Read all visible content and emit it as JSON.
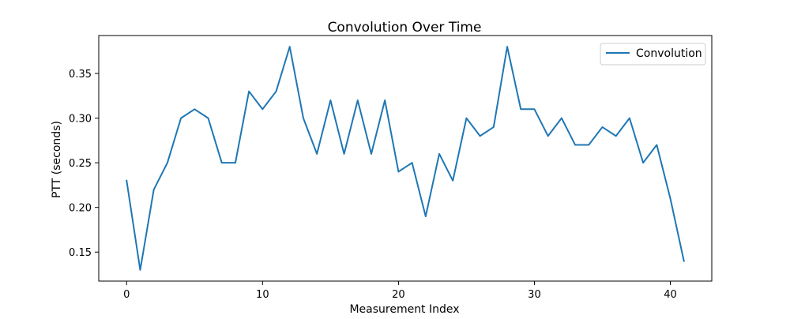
{
  "chart_data": {
    "type": "line",
    "title": "Convolution Over Time",
    "xlabel": "Measurement Index",
    "ylabel": "PTT (seconds)",
    "xlim": [
      -2.05,
      43.05
    ],
    "ylim": [
      0.1175,
      0.3925
    ],
    "xticks": [
      0,
      10,
      20,
      30,
      40
    ],
    "xtick_labels": [
      "0",
      "10",
      "20",
      "30",
      "40"
    ],
    "yticks": [
      0.15,
      0.2,
      0.25,
      0.3,
      0.35
    ],
    "ytick_labels": [
      "0.15",
      "0.20",
      "0.25",
      "0.30",
      "0.35"
    ],
    "grid": false,
    "legend_position": "top-right",
    "x": [
      0,
      1,
      2,
      3,
      4,
      5,
      6,
      7,
      8,
      9,
      10,
      11,
      12,
      13,
      14,
      15,
      16,
      17,
      18,
      19,
      20,
      21,
      22,
      23,
      24,
      25,
      26,
      27,
      28,
      29,
      30,
      31,
      32,
      33,
      34,
      35,
      36,
      37,
      38,
      39,
      40,
      41
    ],
    "series": [
      {
        "name": "Convolution",
        "color": "#1f77b4",
        "values": [
          0.23,
          0.13,
          0.22,
          0.25,
          0.3,
          0.31,
          0.3,
          0.25,
          0.25,
          0.33,
          0.31,
          0.33,
          0.38,
          0.3,
          0.26,
          0.32,
          0.26,
          0.32,
          0.26,
          0.32,
          0.24,
          0.25,
          0.19,
          0.26,
          0.23,
          0.3,
          0.28,
          0.29,
          0.38,
          0.31,
          0.31,
          0.28,
          0.3,
          0.27,
          0.27,
          0.29,
          0.28,
          0.3,
          0.25,
          0.27,
          0.21,
          0.14
        ]
      }
    ]
  }
}
